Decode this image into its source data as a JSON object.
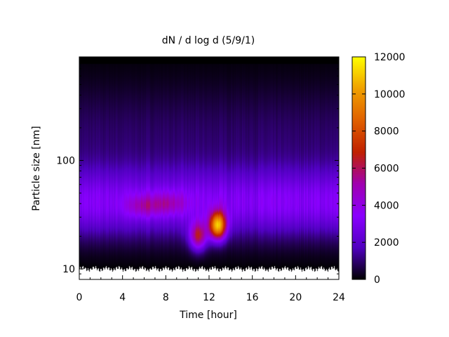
{
  "chart_data": {
    "type": "heatmap",
    "title": "dN / d log d (5/9/1)",
    "xlabel": "Time [hour]",
    "ylabel": "Particle size [nm]",
    "x_scale": "linear",
    "y_scale": "log",
    "xlim": [
      0,
      24
    ],
    "ylim": [
      8,
      900
    ],
    "xticks": [
      0,
      4,
      8,
      12,
      16,
      20,
      24
    ],
    "xtick_labels": [
      "0",
      "4",
      "8",
      "12",
      "16",
      "20",
      "24"
    ],
    "yticks": [
      10,
      100
    ],
    "ytick_labels": [
      "10",
      "100"
    ],
    "colorbar": {
      "min": 0,
      "max": 12000,
      "ticks": [
        0,
        2000,
        4000,
        6000,
        8000,
        10000,
        12000
      ],
      "tick_labels": [
        "0",
        "2000",
        "4000",
        "6000",
        "8000",
        "10000",
        "12000"
      ],
      "colormap": [
        "#000000",
        "#5000c0",
        "#8a00ff",
        "#a000b0",
        "#c02000",
        "#e06000",
        "#f0a000",
        "#ffff00"
      ]
    },
    "data_extent": {
      "size_min_nm": 10,
      "size_max_nm": 780
    },
    "background_mode": {
      "center_nm": 40,
      "level": 3000,
      "time_range": [
        0,
        24
      ]
    },
    "events": [
      {
        "name": "peak-a",
        "time_hour": 11.0,
        "size_nm": 20,
        "level": 7000
      },
      {
        "name": "peak-b",
        "time_hour": 12.8,
        "size_nm": 25,
        "level": 11000
      },
      {
        "name": "bump-c",
        "time_hour": 6.0,
        "size_nm": 38,
        "level": 3800
      },
      {
        "name": "bump-d",
        "time_hour": 8.3,
        "size_nm": 40,
        "level": 3600
      }
    ]
  }
}
